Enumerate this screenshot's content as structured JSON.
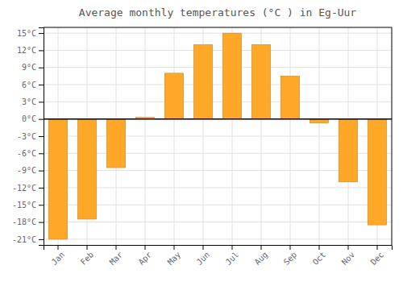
{
  "chart_data": {
    "type": "bar",
    "title": "Average monthly temperatures (°C ) in Eg-Uur",
    "categories": [
      "Jan",
      "Feb",
      "Mar",
      "Apr",
      "May",
      "Jun",
      "Jul",
      "Aug",
      "Sep",
      "Oct",
      "Nov",
      "Dec"
    ],
    "values": [
      -21,
      -17.5,
      -8.5,
      0.3,
      8.0,
      13.0,
      15.0,
      13.0,
      7.5,
      -0.7,
      -11.0,
      -18.5
    ],
    "color": "#FFA726",
    "ylim": [
      -22,
      16
    ],
    "yticks": [
      {
        "value": -21,
        "label": "-21°C"
      },
      {
        "value": -18,
        "label": "-18°C"
      },
      {
        "value": -15,
        "label": "-15°C"
      },
      {
        "value": -12,
        "label": "-12°C"
      },
      {
        "value": -9,
        "label": "-9°C"
      },
      {
        "value": -6,
        "label": "-6°C"
      },
      {
        "value": -3,
        "label": "-3°C"
      },
      {
        "value": 0,
        "label": "0°C"
      },
      {
        "value": 3,
        "label": "3°C"
      },
      {
        "value": 6,
        "label": "6°C"
      },
      {
        "value": 9,
        "label": "9°C"
      },
      {
        "value": 12,
        "label": "12°C"
      },
      {
        "value": 15,
        "label": "15°C"
      }
    ],
    "grid": true
  }
}
